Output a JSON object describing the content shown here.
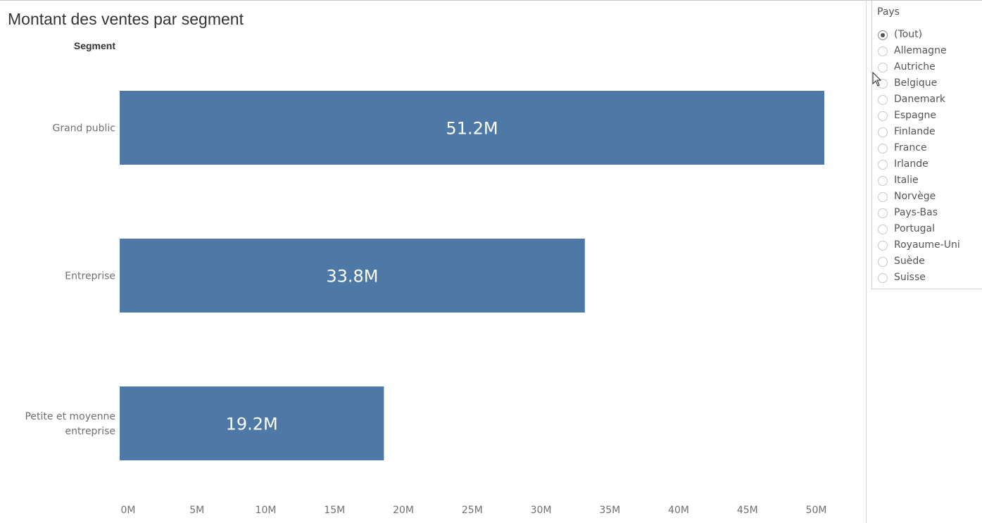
{
  "title": "Montant des ventes par segment",
  "segment_header": "Segment",
  "filter": {
    "title": "Pays",
    "selected_index": 0,
    "options": [
      "(Tout)",
      "Allemagne",
      "Autriche",
      "Belgique",
      "Danemark",
      "Espagne",
      "Finlande",
      "France",
      "Irlande",
      "Italie",
      "Norvège",
      "Pays-Bas",
      "Portugal",
      "Royaume-Uni",
      "Suède",
      "Suisse"
    ]
  },
  "colors": {
    "bar": "#4e79a7",
    "text": "#333333",
    "muted": "#707070"
  },
  "icons": {
    "cursor": "mouse-pointer-icon",
    "radio": "radio-button-icon"
  },
  "chart_data": {
    "type": "bar",
    "orientation": "horizontal",
    "categories": [
      [
        "Grand public"
      ],
      [
        "Entreprise"
      ],
      [
        "Petite et moyenne",
        "entreprise"
      ]
    ],
    "values": [
      51.2,
      33.8,
      19.2
    ],
    "value_labels": [
      "51.2M",
      "33.8M",
      "19.2M"
    ],
    "xlim": [
      0,
      51.2
    ],
    "xticks": [
      0,
      5,
      10,
      15,
      20,
      25,
      30,
      35,
      40,
      45,
      50
    ],
    "xtick_labels": [
      "0M",
      "5M",
      "10M",
      "15M",
      "20M",
      "25M",
      "30M",
      "35M",
      "40M",
      "45M",
      "50M"
    ],
    "grid": false
  }
}
